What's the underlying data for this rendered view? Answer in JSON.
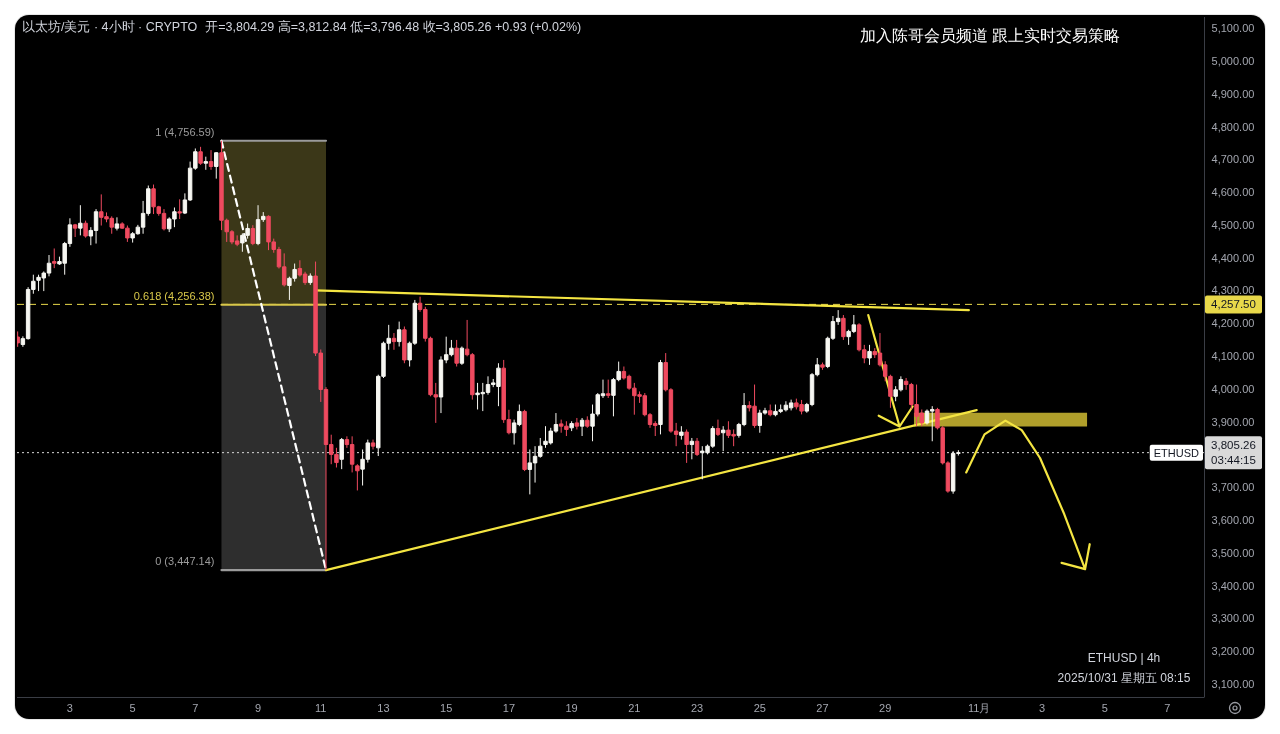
{
  "chart_data": {
    "type": "candlestick",
    "title": "以太坊/美元 · 4小时 · CRYPTO",
    "subtitle": "开=3,804.29 高=3,812.84 低=3,796.48 收=3,805.26 +0.93 (+0.02%)",
    "x": [
      "2025-10-01T08:00",
      "2025-10-01T12:00",
      "2025-10-01T16:00",
      "2025-10-01T20:00",
      "2025-10-02T00:00",
      "2025-10-02T04:00",
      "2025-10-02T08:00",
      "2025-10-02T12:00",
      "2025-10-02T16:00",
      "2025-10-02T20:00",
      "2025-10-03T00:00",
      "2025-10-03T04:00",
      "2025-10-03T08:00",
      "2025-10-03T12:00",
      "2025-10-03T16:00",
      "2025-10-03T20:00",
      "2025-10-04T00:00",
      "2025-10-04T04:00",
      "2025-10-04T08:00",
      "2025-10-04T12:00",
      "2025-10-04T16:00",
      "2025-10-04T20:00",
      "2025-10-05T00:00",
      "2025-10-05T04:00",
      "2025-10-05T08:00",
      "2025-10-05T12:00",
      "2025-10-05T16:00",
      "2025-10-05T20:00",
      "2025-10-06T00:00",
      "2025-10-06T04:00",
      "2025-10-06T08:00",
      "2025-10-06T12:00",
      "2025-10-06T16:00",
      "2025-10-06T20:00",
      "2025-10-07T00:00",
      "2025-10-07T04:00",
      "2025-10-07T08:00",
      "2025-10-07T12:00",
      "2025-10-07T16:00",
      "2025-10-07T20:00",
      "2025-10-08T00:00",
      "2025-10-08T04:00",
      "2025-10-08T08:00",
      "2025-10-08T12:00",
      "2025-10-08T16:00",
      "2025-10-08T20:00",
      "2025-10-09T00:00",
      "2025-10-09T04:00",
      "2025-10-09T08:00",
      "2025-10-09T12:00",
      "2025-10-09T16:00",
      "2025-10-09T20:00",
      "2025-10-10T00:00",
      "2025-10-10T04:00",
      "2025-10-10T08:00",
      "2025-10-10T12:00",
      "2025-10-10T16:00",
      "2025-10-10T20:00",
      "2025-10-11T00:00",
      "2025-10-11T04:00",
      "2025-10-11T08:00",
      "2025-10-11T12:00",
      "2025-10-11T16:00",
      "2025-10-11T20:00",
      "2025-10-12T00:00",
      "2025-10-12T04:00",
      "2025-10-12T08:00",
      "2025-10-12T12:00",
      "2025-10-12T16:00",
      "2025-10-12T20:00",
      "2025-10-13T00:00",
      "2025-10-13T04:00",
      "2025-10-13T08:00",
      "2025-10-13T12:00",
      "2025-10-13T16:00",
      "2025-10-13T20:00",
      "2025-10-14T00:00",
      "2025-10-14T04:00",
      "2025-10-14T08:00",
      "2025-10-14T12:00",
      "2025-10-14T16:00",
      "2025-10-14T20:00",
      "2025-10-15T00:00",
      "2025-10-15T04:00",
      "2025-10-15T08:00",
      "2025-10-15T12:00",
      "2025-10-15T16:00",
      "2025-10-15T20:00",
      "2025-10-16T00:00",
      "2025-10-16T04:00",
      "2025-10-16T08:00",
      "2025-10-16T12:00",
      "2025-10-16T16:00",
      "2025-10-16T20:00",
      "2025-10-17T00:00",
      "2025-10-17T04:00",
      "2025-10-17T08:00",
      "2025-10-17T12:00",
      "2025-10-17T16:00",
      "2025-10-17T20:00",
      "2025-10-18T00:00",
      "2025-10-18T04:00",
      "2025-10-18T08:00",
      "2025-10-18T12:00",
      "2025-10-18T16:00",
      "2025-10-18T20:00",
      "2025-10-19T00:00",
      "2025-10-19T04:00",
      "2025-10-19T08:00",
      "2025-10-19T12:00",
      "2025-10-19T16:00",
      "2025-10-19T20:00",
      "2025-10-20T00:00",
      "2025-10-20T04:00",
      "2025-10-20T08:00",
      "2025-10-20T12:00",
      "2025-10-20T16:00",
      "2025-10-20T20:00",
      "2025-10-21T00:00",
      "2025-10-21T04:00",
      "2025-10-21T08:00",
      "2025-10-21T12:00",
      "2025-10-21T16:00",
      "2025-10-21T20:00",
      "2025-10-22T00:00",
      "2025-10-22T04:00",
      "2025-10-22T08:00",
      "2025-10-22T12:00",
      "2025-10-22T16:00",
      "2025-10-22T20:00",
      "2025-10-23T00:00",
      "2025-10-23T04:00",
      "2025-10-23T08:00",
      "2025-10-23T12:00",
      "2025-10-23T16:00",
      "2025-10-23T20:00",
      "2025-10-24T00:00",
      "2025-10-24T04:00",
      "2025-10-24T08:00",
      "2025-10-24T12:00",
      "2025-10-24T16:00",
      "2025-10-24T20:00",
      "2025-10-25T00:00",
      "2025-10-25T04:00",
      "2025-10-25T08:00",
      "2025-10-25T12:00",
      "2025-10-25T16:00",
      "2025-10-25T20:00",
      "2025-10-26T00:00",
      "2025-10-26T04:00",
      "2025-10-26T08:00",
      "2025-10-26T12:00",
      "2025-10-26T16:00",
      "2025-10-26T20:00",
      "2025-10-27T00:00",
      "2025-10-27T04:00",
      "2025-10-27T08:00",
      "2025-10-27T12:00",
      "2025-10-27T16:00",
      "2025-10-27T20:00",
      "2025-10-28T00:00",
      "2025-10-28T04:00",
      "2025-10-28T08:00",
      "2025-10-28T12:00",
      "2025-10-28T16:00",
      "2025-10-28T20:00",
      "2025-10-29T00:00",
      "2025-10-29T04:00",
      "2025-10-29T08:00",
      "2025-10-29T12:00",
      "2025-10-29T16:00",
      "2025-10-29T20:00",
      "2025-10-30T00:00",
      "2025-10-30T04:00",
      "2025-10-30T08:00",
      "2025-10-30T12:00",
      "2025-10-30T16:00",
      "2025-10-30T20:00",
      "2025-10-31T00:00",
      "2025-10-31T04:00",
      "2025-10-31T08:00"
    ],
    "ohlc": [
      [
        4158,
        4175,
        4128,
        4140
      ],
      [
        4135,
        4160,
        4128,
        4153
      ],
      [
        4153,
        4310,
        4150,
        4303
      ],
      [
        4303,
        4348,
        4290,
        4328
      ],
      [
        4331,
        4348,
        4298,
        4340
      ],
      [
        4338,
        4358,
        4298,
        4353
      ],
      [
        4353,
        4408,
        4343,
        4383
      ],
      [
        4388,
        4428,
        4368,
        4383
      ],
      [
        4381,
        4403,
        4378,
        4388
      ],
      [
        4383,
        4448,
        4348,
        4443
      ],
      [
        4443,
        4520,
        4433,
        4500
      ],
      [
        4500,
        4503,
        4463,
        4490
      ],
      [
        4490,
        4560,
        4468,
        4505
      ],
      [
        4505,
        4513,
        4461,
        4466
      ],
      [
        4466,
        4493,
        4438,
        4483
      ],
      [
        4483,
        4548,
        4443,
        4540
      ],
      [
        4540,
        4593,
        4498,
        4523
      ],
      [
        4525,
        4538,
        4508,
        4518
      ],
      [
        4520,
        4526,
        4473,
        4493
      ],
      [
        4490,
        4523,
        4483,
        4503
      ],
      [
        4503,
        4508,
        4488,
        4490
      ],
      [
        4490,
        4498,
        4448,
        4460
      ],
      [
        4460,
        4478,
        4446,
        4473
      ],
      [
        4473,
        4500,
        4470,
        4493
      ],
      [
        4493,
        4573,
        4473,
        4535
      ],
      [
        4535,
        4620,
        4528,
        4610
      ],
      [
        4610,
        4623,
        4533,
        4555
      ],
      [
        4555,
        4558,
        4528,
        4535
      ],
      [
        4535,
        4548,
        4483,
        4488
      ],
      [
        4488,
        4523,
        4478,
        4518
      ],
      [
        4518,
        4553,
        4493,
        4540
      ],
      [
        4540,
        4578,
        4518,
        4536
      ],
      [
        4536,
        4596,
        4533,
        4576
      ],
      [
        4576,
        4693,
        4573,
        4673
      ],
      [
        4673,
        4733,
        4668,
        4723
      ],
      [
        4723,
        4738,
        4683,
        4688
      ],
      [
        4688,
        4708,
        4668,
        4693
      ],
      [
        4693,
        4728,
        4668,
        4678
      ],
      [
        4678,
        4722,
        4641,
        4720
      ],
      [
        4720,
        4756.59,
        4484,
        4514
      ],
      [
        4514,
        4519,
        4448,
        4479
      ],
      [
        4479,
        4484,
        4441,
        4448
      ],
      [
        4451,
        4468,
        4435,
        4441
      ],
      [
        4445,
        4474,
        4418,
        4468
      ],
      [
        4468,
        4504,
        4458,
        4489
      ],
      [
        4489,
        4499,
        4438,
        4443
      ],
      [
        4443,
        4560,
        4438,
        4516
      ],
      [
        4516,
        4539,
        4509,
        4526
      ],
      [
        4526,
        4529,
        4423,
        4448
      ],
      [
        4448,
        4458,
        4415,
        4425
      ],
      [
        4425,
        4433,
        4367,
        4372
      ],
      [
        4372,
        4413,
        4312,
        4317
      ],
      [
        4315,
        4342,
        4271,
        4337
      ],
      [
        4337,
        4382,
        4327,
        4364
      ],
      [
        4367,
        4392,
        4342,
        4347
      ],
      [
        4350,
        4357,
        4317,
        4324
      ],
      [
        4324,
        4352,
        4317,
        4344
      ],
      [
        4344,
        4388,
        4100,
        4109
      ],
      [
        4109,
        4120,
        3960,
        3998
      ],
      [
        3998,
        4005,
        3447.14,
        3830
      ],
      [
        3830,
        3860,
        3770,
        3800
      ],
      [
        3800,
        3820,
        3760,
        3775
      ],
      [
        3785,
        3850,
        3755,
        3845
      ],
      [
        3845,
        3855,
        3820,
        3830
      ],
      [
        3830,
        3855,
        3745,
        3770
      ],
      [
        3765,
        3770,
        3690,
        3750
      ],
      [
        3755,
        3815,
        3705,
        3785
      ],
      [
        3785,
        3845,
        3775,
        3835
      ],
      [
        3835,
        3845,
        3815,
        3825
      ],
      [
        3820,
        4043,
        3795,
        4038
      ],
      [
        4038,
        4144,
        4033,
        4139
      ],
      [
        4139,
        4195,
        4119,
        4154
      ],
      [
        4154,
        4170,
        4119,
        4144
      ],
      [
        4144,
        4205,
        4129,
        4180
      ],
      [
        4180,
        4190,
        4078,
        4088
      ],
      [
        4088,
        4144,
        4068,
        4139
      ],
      [
        4139,
        4271,
        4134,
        4261
      ],
      [
        4261,
        4281,
        4235,
        4242
      ],
      [
        4242,
        4250,
        4144,
        4154
      ],
      [
        4154,
        4159,
        3977,
        3982
      ],
      [
        3982,
        4018,
        3896,
        3975
      ],
      [
        3975,
        4099,
        3926,
        4088
      ],
      [
        4088,
        4159,
        4078,
        4104
      ],
      [
        4104,
        4149,
        4099,
        4124
      ],
      [
        4124,
        4149,
        4068,
        4078
      ],
      [
        4078,
        4129,
        4073,
        4124
      ],
      [
        4121,
        4210,
        4099,
        4104
      ],
      [
        4104,
        4109,
        3967,
        3982
      ],
      [
        3982,
        4018,
        3937,
        3987
      ],
      [
        3985,
        4018,
        3932,
        3989
      ],
      [
        3989,
        4038,
        3982,
        4013
      ],
      [
        4013,
        4030,
        4005,
        4018
      ],
      [
        4007,
        4078,
        3947,
        4063
      ],
      [
        4063,
        4088,
        3896,
        3906
      ],
      [
        3906,
        3936,
        3861,
        3866
      ],
      [
        3866,
        3906,
        3830,
        3896
      ],
      [
        3891,
        3952,
        3886,
        3931
      ],
      [
        3931,
        3936,
        3749,
        3754
      ],
      [
        3754,
        3815,
        3678,
        3774
      ],
      [
        3774,
        3825,
        3714,
        3794
      ],
      [
        3794,
        3850,
        3790,
        3825
      ],
      [
        3830,
        3886,
        3820,
        3840
      ],
      [
        3835,
        3881,
        3830,
        3871
      ],
      [
        3871,
        3926,
        3866,
        3891
      ],
      [
        3893,
        3906,
        3866,
        3886
      ],
      [
        3886,
        3901,
        3856,
        3876
      ],
      [
        3881,
        3901,
        3871,
        3894
      ],
      [
        3896,
        3911,
        3876,
        3886
      ],
      [
        3886,
        3911,
        3856,
        3904
      ],
      [
        3904,
        3916,
        3881,
        3886
      ],
      [
        3886,
        3952,
        3840,
        3923
      ],
      [
        3923,
        3987,
        3916,
        3982
      ],
      [
        3979,
        4028,
        3972,
        3985
      ],
      [
        3985,
        4028,
        3972,
        3980
      ],
      [
        3980,
        4033,
        3916,
        4028
      ],
      [
        4028,
        4083,
        4023,
        4053
      ],
      [
        4053,
        4068,
        4028,
        4033
      ],
      [
        4038,
        4043,
        3997,
        4002
      ],
      [
        4002,
        4018,
        3921,
        3979
      ],
      [
        3982,
        3992,
        3957,
        3977
      ],
      [
        3979,
        3987,
        3916,
        3921
      ],
      [
        3921,
        3926,
        3881,
        3891
      ],
      [
        3894,
        3901,
        3856,
        3888
      ],
      [
        3891,
        4088,
        3861,
        4080
      ],
      [
        4080,
        4109,
        3992,
        3997
      ],
      [
        3997,
        4002,
        3866,
        3871
      ],
      [
        3871,
        3896,
        3825,
        3861
      ],
      [
        3858,
        3886,
        3845,
        3868
      ],
      [
        3868,
        3876,
        3774,
        3830
      ],
      [
        3830,
        3850,
        3785,
        3840
      ],
      [
        3840,
        3850,
        3795,
        3800
      ],
      [
        3805,
        3825,
        3724,
        3810
      ],
      [
        3805,
        3830,
        3800,
        3825
      ],
      [
        3825,
        3886,
        3820,
        3879
      ],
      [
        3879,
        3906,
        3856,
        3861
      ],
      [
        3866,
        3886,
        3810,
        3874
      ],
      [
        3874,
        3901,
        3850,
        3858
      ],
      [
        3861,
        3876,
        3825,
        3856
      ],
      [
        3858,
        3896,
        3851,
        3891
      ],
      [
        3891,
        3987,
        3886,
        3949
      ],
      [
        3949,
        3962,
        3931,
        3942
      ],
      [
        3947,
        4013,
        3881,
        3888
      ],
      [
        3888,
        3936,
        3866,
        3926
      ],
      [
        3926,
        3942,
        3921,
        3933
      ],
      [
        3933,
        3952,
        3916,
        3921
      ],
      [
        3921,
        3952,
        3916,
        3931
      ],
      [
        3931,
        3952,
        3926,
        3936
      ],
      [
        3936,
        3962,
        3931,
        3950
      ],
      [
        3942,
        3967,
        3934,
        3957
      ],
      [
        3957,
        3970,
        3937,
        3945
      ],
      [
        3952,
        3966,
        3922,
        3932
      ],
      [
        3932,
        3957,
        3927,
        3952
      ],
      [
        3952,
        4048,
        3947,
        4043
      ],
      [
        4043,
        4094,
        4038,
        4073
      ],
      [
        4073,
        4080,
        4058,
        4066
      ],
      [
        4068,
        4159,
        4063,
        4154
      ],
      [
        4154,
        4222,
        4149,
        4205
      ],
      [
        4205,
        4240,
        4195,
        4215
      ],
      [
        4215,
        4225,
        4149,
        4159
      ],
      [
        4159,
        4180,
        4134,
        4175
      ],
      [
        4175,
        4225,
        4170,
        4195
      ],
      [
        4195,
        4200,
        4114,
        4119
      ],
      [
        4119,
        4134,
        4078,
        4094
      ],
      [
        4094,
        4134,
        4073,
        4114
      ],
      [
        4114,
        4124,
        4094,
        4104
      ],
      [
        4109,
        4170,
        4068,
        4073
      ],
      [
        4073,
        4084,
        4023,
        4038
      ],
      [
        4038,
        4043,
        3942,
        3977
      ],
      [
        3977,
        4008,
        3962,
        3997
      ],
      [
        3997,
        4038,
        3992,
        4028
      ],
      [
        4023,
        4033,
        3997,
        4013
      ],
      [
        4013,
        4018,
        3937,
        3952
      ],
      [
        3952,
        4013,
        3886,
        3916
      ],
      [
        3926,
        3937,
        3886,
        3896
      ],
      [
        3896,
        3937,
        3891,
        3932
      ],
      [
        3932,
        3947,
        3840,
        3937
      ],
      [
        3937,
        3942,
        3876,
        3881
      ],
      [
        3881,
        3886,
        3769,
        3774
      ],
      [
        3774,
        3779,
        3683,
        3688
      ],
      [
        3688,
        3810,
        3680,
        3803
      ],
      [
        3804.29,
        3812.84,
        3796.48,
        3805.26
      ]
    ],
    "series": [
      {
        "type": "area",
        "x": [
          "2025-10-07T20:00",
          "2025-10-11T04:00"
        ],
        "values": [
          null,
          null
        ],
        "lower": [
          4256.38,
          4256.38
        ],
        "upper": [
          4756.59,
          4756.59
        ],
        "color": "#3b3718"
      },
      {
        "type": "area",
        "x": [
          "2025-10-07T20:00",
          "2025-10-11T04:00"
        ],
        "values": [
          null,
          null
        ],
        "lower": [
          3447.14,
          3447.14
        ],
        "upper": [
          4256.38,
          4256.38
        ],
        "color": "#2e2e2e"
      },
      {
        "type": "area",
        "x": [
          "2025-10-29T22:00",
          "2025-11-04T10:30"
        ],
        "values": [
          null,
          null
        ],
        "lower": [
          3885,
          3885
        ],
        "upper": [
          3927,
          3927
        ],
        "color": "#b09f2b"
      },
      {
        "type": "line",
        "x": [
          "2025-10-07T20:00",
          "2025-10-11T04:00"
        ],
        "values": [
          4756.59,
          4756.59
        ],
        "color": "#9b9b9b"
      },
      {
        "type": "line",
        "x": [
          "2025-10-07T20:00",
          "2025-10-11T04:00"
        ],
        "values": [
          4256.38,
          4256.38
        ],
        "color": "#d9c84a"
      },
      {
        "type": "line",
        "x": [
          "2025-10-07T20:00",
          "2025-10-11T04:00"
        ],
        "values": [
          3447.14,
          3447.14
        ],
        "color": "#9b9b9b"
      },
      {
        "type": "line",
        "x": [
          "2025-10-07T20:00",
          "2025-10-11T04:00"
        ],
        "values": [
          4756.59,
          3447.14
        ],
        "color": "#ffffff",
        "line_style": "dashed"
      },
      {
        "type": "line",
        "x": [
          "2025-10-10T20:00",
          "2025-10-31T16:00"
        ],
        "values": [
          4300,
          4240
        ],
        "color": "#f4e542"
      },
      {
        "type": "line",
        "x": [
          "2025-10-11T04:00",
          "2025-10-31T22:00"
        ],
        "values": [
          3447.14,
          3935
        ],
        "color": "#f4e542"
      },
      {
        "type": "line",
        "x": [
          "2025-10-28T11:00",
          "2025-10-29T11:00",
          "2025-10-28T19:00",
          "2025-10-29T11:00",
          "2025-10-29T21:00"
        ],
        "values": [
          4225,
          3885,
          3918,
          3885,
          3946
        ],
        "color": "#f4e542"
      },
      {
        "type": "line",
        "x": [
          "2025-10-31T14:00",
          "2025-11-01T04:00",
          "2025-11-01T20:00",
          "2025-11-02T08:30",
          "2025-11-02T22:30",
          "2025-11-03T17:00",
          "2025-11-04T09:00",
          "2025-11-03T15:00",
          "2025-11-04T09:00",
          "2025-11-04T12:30"
        ],
        "values": [
          3745,
          3861,
          3903,
          3874,
          3789,
          3618,
          3450,
          3469,
          3450,
          3526
        ],
        "color": "#f4e542"
      }
    ],
    "xlim": [
      "2025-10-01T07:30",
      "2025-11-08T04:00"
    ],
    "ylim": [
      3060,
      5134
    ],
    "xticks": [
      {
        "value": "2025-10-03",
        "label": "3"
      },
      {
        "value": "2025-10-05",
        "label": "5"
      },
      {
        "value": "2025-10-07",
        "label": "7"
      },
      {
        "value": "2025-10-09",
        "label": "9"
      },
      {
        "value": "2025-10-11",
        "label": "11"
      },
      {
        "value": "2025-10-13",
        "label": "13"
      },
      {
        "value": "2025-10-15",
        "label": "15"
      },
      {
        "value": "2025-10-17",
        "label": "17"
      },
      {
        "value": "2025-10-19",
        "label": "19"
      },
      {
        "value": "2025-10-21",
        "label": "21"
      },
      {
        "value": "2025-10-23",
        "label": "23"
      },
      {
        "value": "2025-10-25",
        "label": "25"
      },
      {
        "value": "2025-10-27",
        "label": "27"
      },
      {
        "value": "2025-10-29",
        "label": "29"
      },
      {
        "value": "2025-11-01",
        "label": "11月"
      },
      {
        "value": "2025-11-03",
        "label": "3"
      },
      {
        "value": "2025-11-05",
        "label": "5"
      },
      {
        "value": "2025-11-07",
        "label": "7"
      }
    ],
    "yticks": [
      {
        "value": 3100,
        "label": "3,100.00"
      },
      {
        "value": 3200,
        "label": "3,200.00"
      },
      {
        "value": 3300,
        "label": "3,300.00"
      },
      {
        "value": 3400,
        "label": "3,400.00"
      },
      {
        "value": 3500,
        "label": "3,500.00"
      },
      {
        "value": 3600,
        "label": "3,600.00"
      },
      {
        "value": 3700,
        "label": "3,700.00"
      },
      {
        "value": 3900,
        "label": "3,900.00"
      },
      {
        "value": 4000,
        "label": "4,000.00"
      },
      {
        "value": 4100,
        "label": "4,100.00"
      },
      {
        "value": 4200,
        "label": "4,200.00"
      },
      {
        "value": 4300,
        "label": "4,300.00"
      },
      {
        "value": 4400,
        "label": "4,400.00"
      },
      {
        "value": 4500,
        "label": "4,500.00"
      },
      {
        "value": 4600,
        "label": "4,600.00"
      },
      {
        "value": 4700,
        "label": "4,700.00"
      },
      {
        "value": 4800,
        "label": "4,800.00"
      },
      {
        "value": 4900,
        "label": "4,900.00"
      },
      {
        "value": 5000,
        "label": "5,000.00"
      },
      {
        "value": 5100,
        "label": "5,100.00"
      }
    ],
    "ref_lines": [
      {
        "axis": "y",
        "value": 4257.5,
        "label": "4,257.50",
        "color": "#e8d84a",
        "line_style": "dashed"
      },
      {
        "axis": "y",
        "value": 3805.26,
        "label": "3,805.26\n03:44:15",
        "color": "#d9d9d9",
        "line_style": "dotted"
      }
    ],
    "annotations": [
      "加入陈哥会员频道 跟上实时交易策略",
      "ETHUSD | 4h",
      "2025/10/31 星期五 08:15",
      {
        "text": "1 (4,756.59)",
        "x": "2025-10-07T20:00",
        "y": 4756.59
      },
      {
        "text": "0.618 (4,256.38)",
        "x": "2025-10-07T20:00",
        "y": 4256.38
      },
      {
        "text": "0 (3,447.14)",
        "x": "2025-10-07T20:00",
        "y": 3447.14
      },
      {
        "text": "ETHUSD",
        "y": 3805.26
      }
    ]
  }
}
